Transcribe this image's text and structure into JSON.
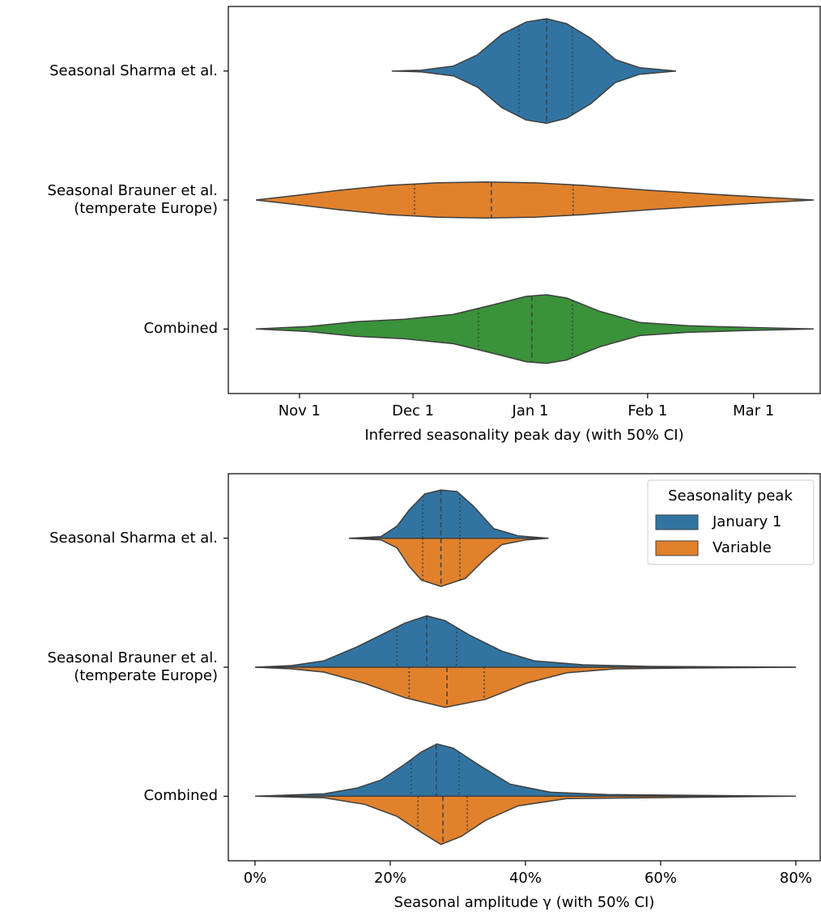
{
  "chart_data": [
    {
      "type": "violin",
      "xlabel": "Inferred seasonality peak day (with 50% CI)",
      "categories": [
        "Seasonal Sharma et al.",
        "Seasonal Brauner et al.\n(temperate Europe)",
        "Combined"
      ],
      "xlim": [
        -79.8,
        76.6
      ],
      "xticks": [
        {
          "value": -61,
          "label": "Nov 1"
        },
        {
          "value": -31,
          "label": "Dec 1"
        },
        {
          "value": 0,
          "label": "Jan 1"
        },
        {
          "value": 31,
          "label": "Feb 1"
        },
        {
          "value": 59,
          "label": "Mar 1"
        }
      ],
      "violins": [
        {
          "color": "#3274a1",
          "x": [
            -36.6,
            -28.9,
            -20.3,
            -13.9,
            -7.5,
            -1.1,
            4.3,
            9.6,
            16.0,
            22.5,
            28.9,
            38.5
          ],
          "density": [
            0,
            1,
            6,
            20,
            45,
            60,
            64,
            58,
            40,
            14,
            4,
            0
          ],
          "quartiles": [
            -3,
            4.3,
            11.1
          ]
        },
        {
          "color": "#e1812c",
          "x": [
            -72.5,
            -63.1,
            -50.3,
            -37.4,
            -24.6,
            -11.8,
            1.1,
            13.9,
            31.0,
            48.1,
            63.1,
            74.9
          ],
          "density": [
            0,
            5,
            12,
            18,
            21,
            22,
            21,
            18,
            12,
            7,
            3,
            0
          ],
          "quartiles": [
            -30.6,
            -10.3,
            11.3
          ]
        },
        {
          "color": "#3a923a",
          "x": [
            -72.5,
            -58.8,
            -46.0,
            -33.2,
            -20.3,
            -9.6,
            -1.1,
            4.3,
            9.6,
            18.2,
            28.9,
            41.7,
            56.7,
            74.9
          ],
          "density": [
            0,
            3,
            9,
            12,
            18,
            30,
            40,
            42,
            38,
            22,
            8,
            4,
            2,
            0
          ],
          "quartiles": [
            -13.7,
            0.4,
            11.1
          ]
        }
      ]
    },
    {
      "type": "split-violin",
      "xlabel": "Seasonal amplitude γ (with 50% CI)",
      "categories": [
        "Seasonal Sharma et al.",
        "Seasonal Brauner et al.\n(temperate Europe)",
        "Combined"
      ],
      "xlim": [
        -3.95,
        83.6
      ],
      "xticks": [
        {
          "value": 0,
          "label": "0%"
        },
        {
          "value": 20,
          "label": "20%"
        },
        {
          "value": 40,
          "label": "40%"
        },
        {
          "value": 60,
          "label": "60%"
        },
        {
          "value": 80,
          "label": "80%"
        }
      ],
      "legend_title": "Seasonality peak",
      "legend": "upper right",
      "series": [
        {
          "name": "January 1",
          "color": "#3274a1",
          "violins": [
            {
              "x": [
                13.9,
                18.6,
                21.0,
                22.8,
                25.1,
                27.5,
                29.9,
                32.3,
                35.3,
                38.9,
                43.4
              ],
              "density": [
                0,
                2,
                15,
                35,
                55,
                60,
                58,
                40,
                12,
                3,
                0
              ],
              "quartiles": [
                24.8,
                27.5,
                30.3
              ]
            },
            {
              "x": [
                0,
                5.4,
                10.2,
                15.0,
                18.6,
                22.2,
                25.4,
                28.1,
                31.7,
                36.5,
                41.3,
                48.5,
                58.1,
                80.0
              ],
              "density": [
                0,
                2,
                8,
                25,
                40,
                55,
                64,
                58,
                40,
                20,
                8,
                3,
                1,
                0
              ],
              "quartiles": [
                21.0,
                25.4,
                29.8
              ]
            },
            {
              "x": [
                0,
                10.2,
                15.0,
                18.6,
                22.2,
                24.6,
                26.9,
                29.3,
                32.9,
                37.7,
                43.7,
                52.1,
                80.0
              ],
              "density": [
                0,
                3,
                10,
                20,
                40,
                55,
                65,
                60,
                40,
                15,
                5,
                2,
                0
              ],
              "quartiles": [
                23.1,
                26.8,
                30.2
              ]
            }
          ]
        },
        {
          "name": "Variable",
          "color": "#e1812c",
          "violins": [
            {
              "x": [
                13.9,
                18.6,
                21.0,
                22.8,
                24.6,
                27.5,
                31.1,
                34.1,
                36.5,
                40.1,
                43.4
              ],
              "density": [
                0,
                2,
                12,
                35,
                52,
                60,
                50,
                25,
                8,
                2,
                0
              ],
              "quartiles": [
                24.8,
                27.5,
                30.3
              ]
            },
            {
              "x": [
                0,
                5.4,
                10.2,
                16.2,
                22.2,
                28.1,
                34.1,
                40.1,
                46.1,
                53.3,
                64.1,
                80.0
              ],
              "density": [
                0,
                2,
                6,
                20,
                38,
                50,
                40,
                20,
                7,
                2,
                1,
                0
              ],
              "quartiles": [
                22.8,
                28.4,
                33.9
              ]
            },
            {
              "x": [
                0,
                10.2,
                16.2,
                21.0,
                24.6,
                27.5,
                30.5,
                34.1,
                38.9,
                46.1,
                80.0
              ],
              "density": [
                0,
                2,
                10,
                25,
                45,
                60,
                50,
                30,
                12,
                3,
                0
              ],
              "quartiles": [
                24.1,
                27.8,
                31.4
              ]
            }
          ]
        }
      ]
    }
  ]
}
